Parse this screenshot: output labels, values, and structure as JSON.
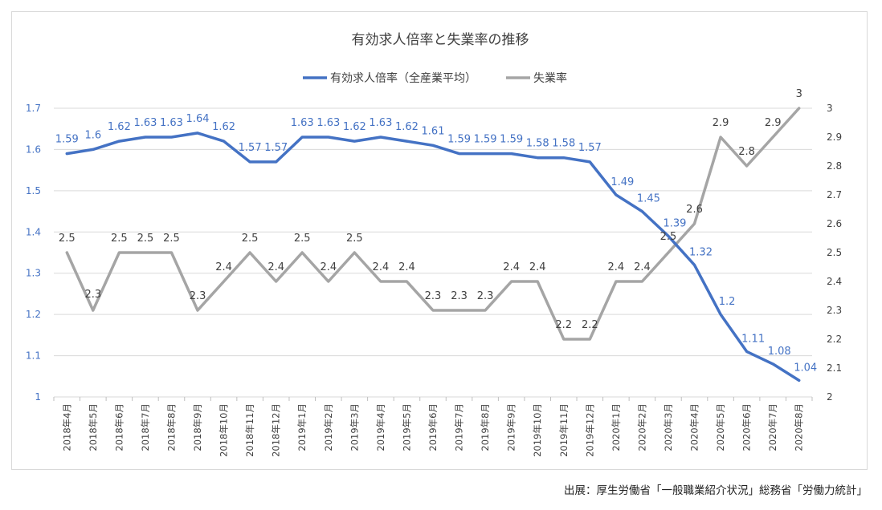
{
  "chart_data": {
    "type": "line",
    "title": "有効求人倍率と失業率の推移",
    "categories": [
      "2018年4月",
      "2018年5月",
      "2018年6月",
      "2018年7月",
      "2018年8月",
      "2018年9月",
      "2018年10月",
      "2018年11月",
      "2018年12月",
      "2019年1月",
      "2019年2月",
      "2019年3月",
      "2019年4月",
      "2019年5月",
      "2019年6月",
      "2019年7月",
      "2019年8月",
      "2019年9月",
      "2019年10月",
      "2019年11月",
      "2019年12月",
      "2020年1月",
      "2020年2月",
      "2020年3月",
      "2020年4月",
      "2020年5月",
      "2020年6月",
      "2020年7月",
      "2020年8月"
    ],
    "series": [
      {
        "name": "有効求人倍率（全産業平均）",
        "axis": "left",
        "color": "#4472c4",
        "values": [
          1.59,
          1.6,
          1.62,
          1.63,
          1.63,
          1.64,
          1.62,
          1.57,
          1.57,
          1.63,
          1.63,
          1.62,
          1.63,
          1.62,
          1.61,
          1.59,
          1.59,
          1.59,
          1.58,
          1.58,
          1.57,
          1.49,
          1.45,
          1.39,
          1.32,
          1.2,
          1.11,
          1.08,
          1.04
        ],
        "labels": [
          "1.59",
          "1.6",
          "1.62",
          "1.63",
          "1.63",
          "1.64",
          "1.62",
          "1.57",
          "1.57",
          "1.63",
          "1.63",
          "1.62",
          "1.63",
          "1.62",
          "1.61",
          "1.59",
          "1.59",
          "1.59",
          "1.58",
          "1.58",
          "1.57",
          "1.49",
          "1.45",
          "1.39",
          "1.32",
          "1.2",
          "1.11",
          "1.08",
          "1.04"
        ]
      },
      {
        "name": "失業率",
        "axis": "right",
        "color": "#a5a5a5",
        "values": [
          2.5,
          2.3,
          2.5,
          2.5,
          2.5,
          2.3,
          2.4,
          2.5,
          2.4,
          2.5,
          2.4,
          2.5,
          2.4,
          2.4,
          2.3,
          2.3,
          2.3,
          2.4,
          2.4,
          2.2,
          2.2,
          2.4,
          2.4,
          2.5,
          2.6,
          2.9,
          2.8,
          2.9,
          3
        ],
        "labels": [
          "2.5",
          "2.3",
          "2.5",
          "2.5",
          "2.5",
          "2.3",
          "2.4",
          "2.5",
          "2.4",
          "2.5",
          "2.4",
          "2.5",
          "2.4",
          "2.4",
          "2.3",
          "2.3",
          "2.3",
          "2.4",
          "2.4",
          "2.2",
          "2.2",
          "2.4",
          "2.4",
          "2.5",
          "2.6",
          "2.9",
          "2.8",
          "2.9",
          "3"
        ]
      }
    ],
    "y_left": {
      "ylim": [
        1,
        1.7
      ],
      "ticks": [
        "1",
        "1.1",
        "1.2",
        "1.3",
        "1.4",
        "1.5",
        "1.6",
        "1.7"
      ],
      "color": "#4472c4"
    },
    "y_right": {
      "ylim": [
        2,
        3
      ],
      "ticks": [
        "2",
        "2.1",
        "2.2",
        "2.3",
        "2.4",
        "2.5",
        "2.6",
        "2.7",
        "2.8",
        "2.9",
        "3"
      ],
      "color": "#404040"
    },
    "grid": true,
    "legend_position": "top"
  },
  "source_note": "出展：厚生労働省「一般職業紹介状況」総務省「労働力統計」"
}
